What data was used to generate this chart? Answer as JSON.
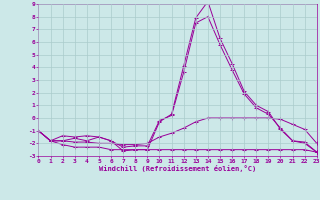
{
  "xlabel": "Windchill (Refroidissement éolien,°C)",
  "bg_color": "#cce8e8",
  "grid_color": "#aacccc",
  "line_color": "#990099",
  "xlim": [
    0,
    23
  ],
  "ylim": [
    -3,
    9
  ],
  "xticks": [
    0,
    1,
    2,
    3,
    4,
    5,
    6,
    7,
    8,
    9,
    10,
    11,
    12,
    13,
    14,
    15,
    16,
    17,
    18,
    19,
    20,
    21,
    22,
    23
  ],
  "yticks": [
    -3,
    -2,
    -1,
    0,
    1,
    2,
    3,
    4,
    5,
    6,
    7,
    8,
    9
  ],
  "series": [
    {
      "x": [
        0,
        1,
        2,
        3,
        4,
        5,
        6,
        7,
        8,
        9,
        10,
        11,
        12,
        13,
        14,
        15,
        16,
        17,
        18,
        19,
        20,
        21,
        22,
        23
      ],
      "y": [
        -1,
        -1.8,
        -1.8,
        -1.6,
        -1.8,
        -1.5,
        -1.8,
        -2.6,
        -2.5,
        -2.5,
        -0.3,
        0.3,
        4.1,
        7.9,
        9.2,
        6.3,
        4.3,
        2.1,
        1.0,
        0.5,
        -0.9,
        -1.8,
        -2.0,
        -2.7
      ]
    },
    {
      "x": [
        0,
        1,
        2,
        3,
        4,
        5,
        6,
        7,
        8,
        9,
        10,
        11,
        12,
        13,
        14,
        15,
        16,
        17,
        18,
        19,
        20,
        21,
        22,
        23
      ],
      "y": [
        -1,
        -1.8,
        -2.1,
        -2.3,
        -2.3,
        -2.3,
        -2.5,
        -2.5,
        -2.5,
        -2.5,
        -2.5,
        -2.5,
        -2.5,
        -2.5,
        -2.5,
        -2.5,
        -2.5,
        -2.5,
        -2.5,
        -2.5,
        -2.5,
        -2.5,
        -2.5,
        -2.7
      ]
    },
    {
      "x": [
        0,
        1,
        2,
        3,
        4,
        5,
        6,
        7,
        8,
        9,
        10,
        11,
        12,
        13,
        14,
        15,
        16,
        17,
        18,
        19,
        20,
        21,
        22,
        23
      ],
      "y": [
        -1,
        -1.8,
        -1.4,
        -1.5,
        -1.4,
        -1.5,
        -1.8,
        -2.3,
        -2.2,
        -2.2,
        -0.2,
        0.2,
        3.6,
        7.5,
        8.0,
        5.8,
        3.8,
        1.9,
        0.8,
        0.3,
        -0.8,
        -1.8,
        -1.9,
        -2.7
      ]
    },
    {
      "x": [
        0,
        1,
        2,
        3,
        4,
        5,
        6,
        7,
        8,
        9,
        10,
        11,
        12,
        13,
        14,
        15,
        16,
        17,
        18,
        19,
        20,
        21,
        22,
        23
      ],
      "y": [
        -1,
        -1.8,
        -1.8,
        -1.9,
        -1.9,
        -2.0,
        -2.0,
        -2.1,
        -2.1,
        -2.0,
        -1.5,
        -1.2,
        -0.8,
        -0.3,
        0.0,
        0.0,
        0.0,
        0.0,
        0.0,
        0.0,
        -0.1,
        -0.5,
        -0.9,
        -2.0
      ]
    }
  ]
}
